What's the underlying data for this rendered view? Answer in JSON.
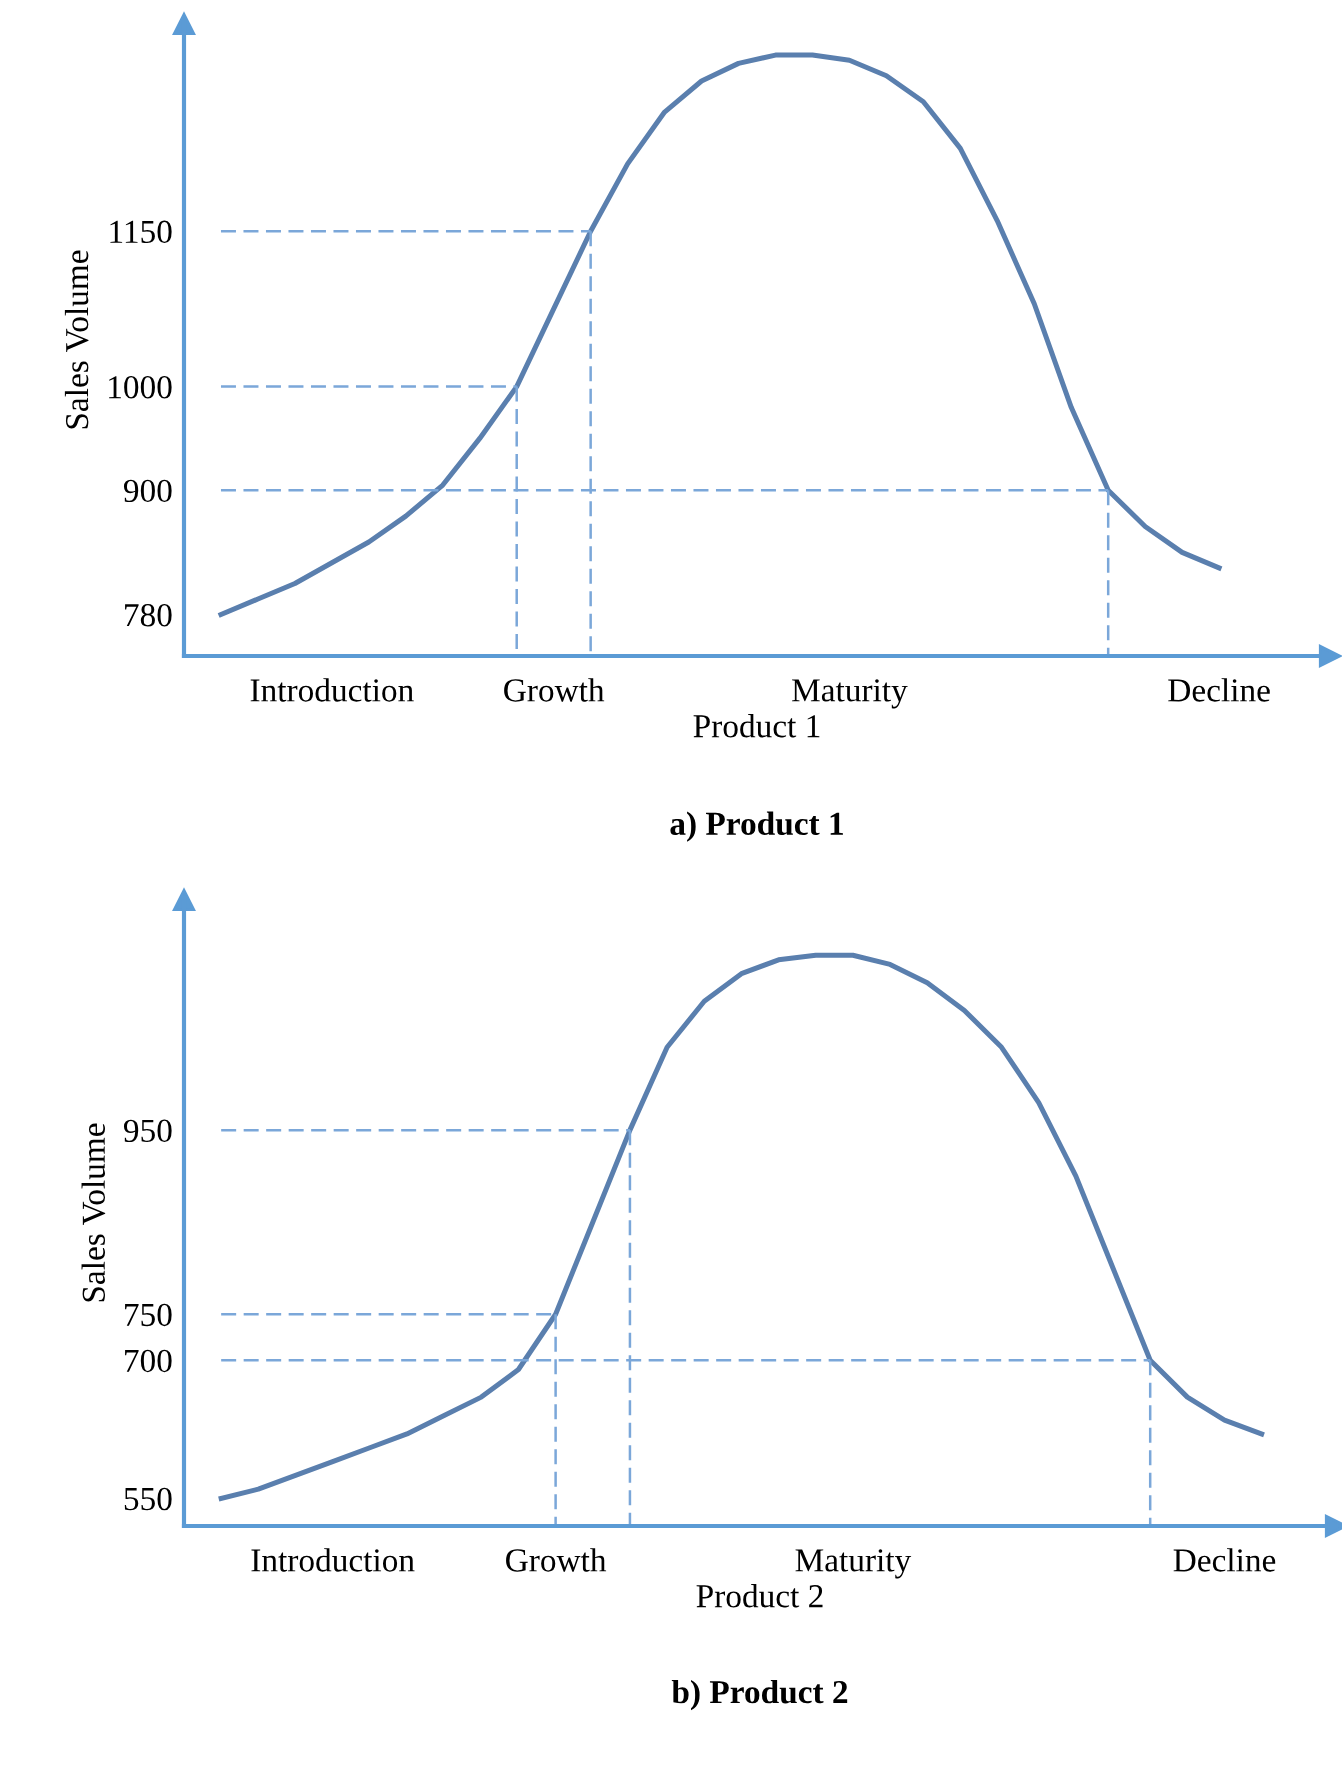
{
  "chart_data": [
    {
      "type": "line",
      "title": "a) Product 1",
      "xlabel": "Product 1",
      "ylabel": "Sales Volume",
      "grid": false,
      "ylim": [
        740,
        1350
      ],
      "yticks": [
        780,
        900,
        1000,
        1150
      ],
      "categories": [
        null,
        null,
        null,
        "Introduction",
        null,
        null,
        null,
        null,
        null,
        "Growth",
        null,
        null,
        null,
        null,
        null,
        null,
        null,
        "Maturity",
        null,
        null,
        null,
        null,
        null,
        null,
        null,
        null,
        null,
        "Decline",
        null,
        null
      ],
      "series": [
        {
          "line_style": "solid",
          "color": "#5a7fae",
          "values": [
            780,
            795,
            810,
            830,
            850,
            875,
            905,
            950,
            1000,
            1075,
            1150,
            1215,
            1265,
            1295,
            1312,
            1320,
            1320,
            1315,
            1300,
            1275,
            1230,
            1160,
            1080,
            980,
            900,
            865,
            840,
            825,
            null,
            null
          ]
        },
        {
          "line_style": "dashed",
          "color": "#7ba7d9",
          "values": [
            1000,
            1000,
            1000,
            1000,
            1000,
            1000,
            1000,
            1000,
            1000,
            null,
            null,
            null,
            null,
            null,
            null,
            null,
            null,
            null,
            null,
            null,
            null,
            null,
            null,
            null,
            null,
            null,
            null,
            null,
            null,
            null
          ]
        },
        {
          "line_style": "dashed",
          "color": "#7ba7d9",
          "values": [
            1150,
            1150,
            1150,
            1150,
            1150,
            1150,
            1150,
            1150,
            1150,
            1150,
            1150,
            null,
            null,
            null,
            null,
            null,
            null,
            null,
            null,
            null,
            null,
            null,
            null,
            null,
            null,
            null,
            null,
            null,
            null,
            null
          ]
        },
        {
          "line_style": "dashed",
          "color": "#7ba7d9",
          "values": [
            900,
            900,
            900,
            900,
            900,
            900,
            900,
            900,
            900,
            900,
            900,
            900,
            900,
            900,
            900,
            900,
            900,
            900,
            900,
            900,
            900,
            900,
            900,
            900,
            900,
            null,
            null,
            null,
            null,
            null
          ]
        }
      ]
    },
    {
      "type": "line",
      "title": "b) Product 2",
      "xlabel": "Product 2",
      "ylabel": "Sales Volume",
      "grid": false,
      "ylim": [
        520,
        1200
      ],
      "yticks": [
        550,
        700,
        750,
        950
      ],
      "categories": [
        null,
        null,
        null,
        "Introduction",
        null,
        null,
        null,
        null,
        null,
        "Growth",
        null,
        null,
        null,
        null,
        null,
        null,
        null,
        "Maturity",
        null,
        null,
        null,
        null,
        null,
        null,
        null,
        null,
        null,
        "Decline",
        null,
        null
      ],
      "series": [
        {
          "line_style": "solid",
          "color": "#5a7fae",
          "values": [
            550,
            560,
            575,
            590,
            605,
            620,
            640,
            660,
            690,
            750,
            850,
            950,
            1040,
            1090,
            1120,
            1135,
            1140,
            1140,
            1130,
            1110,
            1080,
            1040,
            980,
            900,
            800,
            700,
            660,
            635,
            620,
            null
          ]
        },
        {
          "line_style": "dashed",
          "color": "#7ba7d9",
          "values": [
            750,
            750,
            750,
            750,
            750,
            750,
            750,
            750,
            750,
            750,
            null,
            null,
            null,
            null,
            null,
            null,
            null,
            null,
            null,
            null,
            null,
            null,
            null,
            null,
            null,
            null,
            null,
            null,
            null,
            null
          ]
        },
        {
          "line_style": "dashed",
          "color": "#7ba7d9",
          "values": [
            950,
            950,
            950,
            950,
            950,
            950,
            950,
            950,
            950,
            950,
            950,
            950,
            null,
            null,
            null,
            null,
            null,
            null,
            null,
            null,
            null,
            null,
            null,
            null,
            null,
            null,
            null,
            null,
            null,
            null
          ]
        },
        {
          "line_style": "dashed",
          "color": "#7ba7d9",
          "values": [
            700,
            700,
            700,
            700,
            700,
            700,
            700,
            700,
            700,
            700,
            700,
            700,
            700,
            700,
            700,
            700,
            700,
            700,
            700,
            700,
            700,
            700,
            700,
            700,
            700,
            700,
            null,
            null,
            null,
            null
          ]
        }
      ]
    }
  ]
}
